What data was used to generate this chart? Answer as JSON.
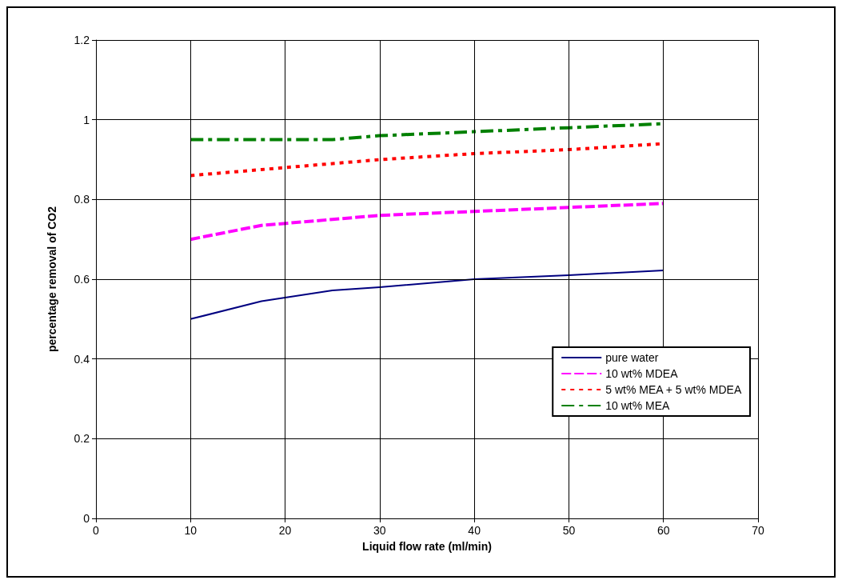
{
  "chart_data": {
    "type": "line",
    "xlabel": "Liquid flow rate (ml/min)",
    "ylabel": "percentage removal of CO2",
    "x": [
      10,
      17.5,
      25,
      30,
      40,
      50,
      60
    ],
    "series": [
      {
        "name": "pure water",
        "color": "#000080",
        "values": [
          0.5,
          0.545,
          0.572,
          0.58,
          0.6,
          0.61,
          0.622
        ],
        "line_style": "solid"
      },
      {
        "name": "10 wt% MDEA",
        "color": "#ff00ff",
        "values": [
          0.7,
          0.735,
          0.75,
          0.76,
          0.77,
          0.78,
          0.79
        ],
        "line_style": "dashed"
      },
      {
        "name": "5 wt% MEA + 5 wt% MDEA",
        "color": "#ff0000",
        "values": [
          0.86,
          0.875,
          0.89,
          0.9,
          0.915,
          0.925,
          0.94
        ],
        "line_style": "dotted"
      },
      {
        "name": "10 wt% MEA",
        "color": "#008000",
        "values": [
          0.95,
          0.95,
          0.95,
          0.96,
          0.97,
          0.98,
          0.99
        ],
        "line_style": "dashdot"
      }
    ],
    "xlim": [
      0,
      70
    ],
    "xticks": [
      0,
      10,
      20,
      30,
      40,
      50,
      60,
      70
    ],
    "ylim": [
      0,
      1.2
    ],
    "yticks": [
      0,
      0.2,
      0.4,
      0.6,
      0.8,
      1,
      1.2
    ],
    "grid": true,
    "legend": "bottom right",
    "marker": "none"
  }
}
